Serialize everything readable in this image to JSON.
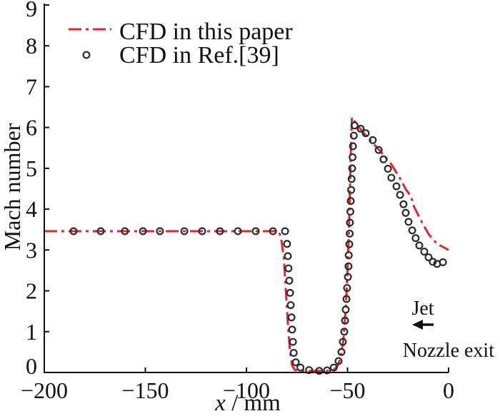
{
  "chart_data": {
    "type": "line",
    "title": "",
    "xlabel": {
      "symbol": "x",
      "unit": " / mm"
    },
    "ylabel": "Mach number",
    "xlim": [
      -200,
      0
    ],
    "ylim": [
      0,
      9
    ],
    "xticks": [
      -200,
      -150,
      -100,
      -50,
      0
    ],
    "xtick_labels": [
      "−200",
      "−150",
      "−100",
      "−50",
      "0"
    ],
    "yticks": [
      0,
      1,
      2,
      3,
      4,
      5,
      6,
      7,
      8,
      9
    ],
    "grid": false,
    "legend": "top-left",
    "series": [
      {
        "name": "CFD in this paper",
        "type": "line",
        "color": "#e3262c",
        "x": [
          -200,
          -84.5,
          -83,
          -81.5,
          -80.5,
          -79.5,
          -78.5,
          -77.5,
          -76,
          -72,
          -60,
          -57,
          -55,
          -53.5,
          -52,
          -50.8,
          -50,
          -49.3,
          -48.8,
          -48.3,
          -47.8,
          -45.2,
          -42.4,
          -38.2,
          -32.9,
          -28.3,
          -24.0,
          -21.2,
          -18.7,
          -17.0,
          -13.4,
          -9.9,
          -5.7,
          0
        ],
        "y": [
          3.46,
          3.46,
          3.35,
          2.8,
          2.0,
          1.2,
          0.55,
          0.18,
          0.06,
          0.04,
          0.04,
          0.06,
          0.15,
          0.35,
          0.8,
          1.6,
          2.5,
          3.5,
          4.5,
          5.5,
          6.25,
          6.06,
          5.89,
          5.66,
          5.37,
          5.1,
          4.75,
          4.49,
          4.32,
          4.05,
          3.7,
          3.39,
          3.15,
          3.0
        ]
      },
      {
        "name": "CFD in Ref.[39]",
        "type": "scatter",
        "color": "#2b2b2b",
        "x": [
          -185.5,
          -172.1,
          -160.1,
          -151.2,
          -142.8,
          -130.7,
          -121.9,
          -113.1,
          -104.2,
          -95.4,
          -86.9,
          -80.9,
          -79.9,
          -79.5,
          -79.2,
          -78.8,
          -78.4,
          -78.1,
          -77.7,
          -77.4,
          -77.0,
          -76.6,
          -75.6,
          -73.3,
          -69.0,
          -64.0,
          -60.1,
          -56.8,
          -54.4,
          -53.0,
          -52.3,
          -51.6,
          -51.2,
          -50.9,
          -50.5,
          -50.2,
          -49.8,
          -49.5,
          -49.4,
          -49.1,
          -48.9,
          -48.8,
          -48.6,
          -48.4,
          -48.2,
          -48.0,
          -47.7,
          -47.5,
          -47.3,
          -46.9,
          -46.5,
          -43.5,
          -41.0,
          -37.5,
          -34.6,
          -32.2,
          -30.0,
          -28.3,
          -25.8,
          -24.0,
          -22.3,
          -21.2,
          -19.8,
          -18.0,
          -16.3,
          -14.5,
          -12.0,
          -9.9,
          -7.8,
          -5.7,
          -2.8
        ],
        "y": [
          3.46,
          3.46,
          3.46,
          3.46,
          3.46,
          3.46,
          3.46,
          3.46,
          3.46,
          3.46,
          3.46,
          3.46,
          3.15,
          2.85,
          2.55,
          2.25,
          1.95,
          1.65,
          1.35,
          1.05,
          0.75,
          0.48,
          0.25,
          0.12,
          0.06,
          0.04,
          0.05,
          0.12,
          0.28,
          0.5,
          0.75,
          1.0,
          1.27,
          1.54,
          1.8,
          2.07,
          2.34,
          2.6,
          2.87,
          3.14,
          3.4,
          3.67,
          3.94,
          4.2,
          4.47,
          4.74,
          5.0,
          5.27,
          5.54,
          5.8,
          6.05,
          5.97,
          5.86,
          5.69,
          5.45,
          5.22,
          4.99,
          4.77,
          4.56,
          4.35,
          4.12,
          3.91,
          3.69,
          3.48,
          3.29,
          3.11,
          2.96,
          2.82,
          2.71,
          2.66,
          2.7
        ]
      }
    ],
    "annotations": {
      "jet_label": "Jet",
      "arrow_icon": "left-arrow-icon",
      "nozzle_label": "Nozzle exit",
      "arrow_color": "#111111"
    }
  }
}
